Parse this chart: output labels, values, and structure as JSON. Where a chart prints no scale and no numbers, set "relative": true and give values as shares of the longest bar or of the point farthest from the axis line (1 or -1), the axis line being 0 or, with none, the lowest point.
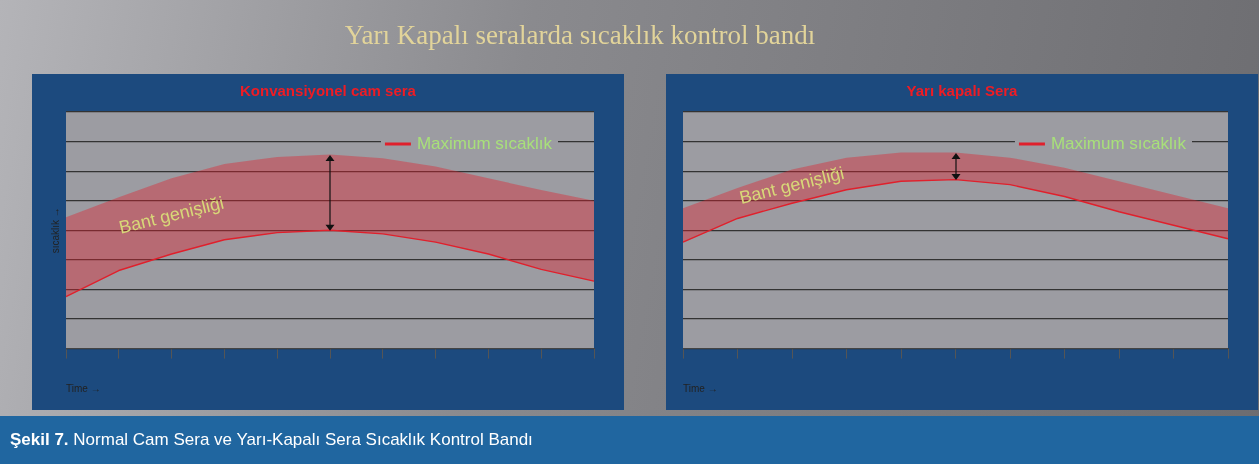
{
  "chart_data": [
    {
      "type": "other",
      "title": "Yarı Kapalı seralarda sıcaklık kontrol bandı"
    },
    {
      "type": "line",
      "title": "Konvansiyonel cam sera",
      "xlabel": "Time →",
      "ylabel": "sıcaklık →",
      "relative": true,
      "grid": "y",
      "legend": "top right",
      "marker": "none",
      "annotations": [
        "Bant genişliği"
      ],
      "categories": [
        null,
        null,
        null,
        null,
        null,
        null,
        null,
        null,
        null,
        null,
        null
      ],
      "series": [
        {
          "name": "Maximum sıcaklık",
          "color": "#e0202c",
          "values": [
            0.44,
            0.66,
            0.8,
            0.92,
            0.98,
            1.0,
            0.97,
            0.9,
            0.8,
            0.67,
            0.57
          ],
          "lower": [
            0.44,
            0.66,
            0.8,
            0.92,
            0.98,
            1.0,
            0.97,
            0.9,
            0.8,
            0.67,
            0.57
          ],
          "upper": [
            1.11,
            1.28,
            1.44,
            1.56,
            1.62,
            1.64,
            1.61,
            1.54,
            1.44,
            1.34,
            1.25
          ]
        }
      ]
    },
    {
      "type": "line",
      "title": "Yarı kapalı Sera",
      "xlabel": "Time →",
      "relative": true,
      "grid": "y",
      "legend": "top right",
      "marker": "none",
      "annotations": [
        "Bant genişliği"
      ],
      "categories": [
        null,
        null,
        null,
        null,
        null,
        null,
        null,
        null,
        null,
        null,
        null
      ],
      "series": [
        {
          "name": "Maximum sıcaklık",
          "color": "#e0202c",
          "values": [
            0.63,
            0.77,
            0.86,
            0.94,
            0.99,
            1.0,
            0.97,
            0.9,
            0.81,
            0.73,
            0.65
          ],
          "lower": [
            0.63,
            0.77,
            0.86,
            0.94,
            0.99,
            1.0,
            0.97,
            0.9,
            0.81,
            0.73,
            0.65
          ],
          "upper": [
            0.83,
            0.95,
            1.06,
            1.13,
            1.16,
            1.16,
            1.13,
            1.07,
            0.99,
            0.91,
            0.83
          ]
        }
      ]
    },
    {
      "type": "other",
      "annotations": [
        "Şekil 7. Normal Cam Sera ve Yarı-Kapalı Sera Sıcaklık Kontrol Bandı"
      ]
    }
  ]
}
